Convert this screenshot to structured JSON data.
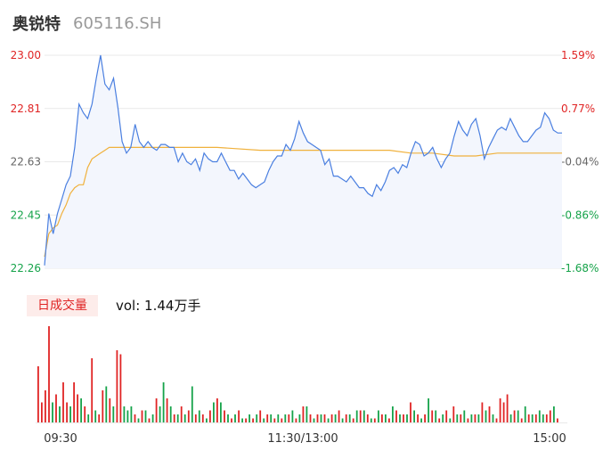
{
  "header": {
    "name": "奥锐特",
    "code": "605116.SH"
  },
  "colors": {
    "up": "#e02424",
    "down": "#16a34a",
    "neutral": "#666666",
    "price_line": "#4a7fe0",
    "avg_line": "#f0b13c",
    "area_fill": "#f3f6fd",
    "grid": "#e9e9e9"
  },
  "volume_panel": {
    "badge": "日成交量",
    "label": "vol: 1.44万手"
  },
  "chart_data": {
    "type": "line",
    "title": "",
    "price_axis": {
      "ticks": [
        "23.00",
        "22.81",
        "22.63",
        "22.45",
        "22.26"
      ],
      "ylim": [
        22.26,
        23.0
      ]
    },
    "pct_axis": {
      "ticks": [
        "1.59%",
        "0.77%",
        "-0.04%",
        "-0.86%",
        "-1.68%"
      ],
      "colors": [
        "up",
        "up",
        "neutral",
        "down",
        "down"
      ]
    },
    "left_tick_colors": [
      "up",
      "up",
      "neutral",
      "down",
      "down"
    ],
    "x_ticks": [
      "09:30",
      "11:30/13:00",
      "15:00"
    ],
    "series": [
      {
        "name": "price",
        "x": [
          0,
          2,
          4,
          6,
          8,
          10,
          12,
          14,
          16,
          18,
          20,
          22,
          24,
          26,
          28,
          30,
          32,
          34,
          36,
          38,
          40,
          42,
          44,
          46,
          48,
          50,
          52,
          54,
          56,
          58,
          60,
          62,
          64,
          66,
          68,
          70,
          72,
          74,
          76,
          78,
          80,
          82,
          84,
          86,
          88,
          90,
          92,
          94,
          96,
          98,
          100,
          102,
          104,
          106,
          108,
          110,
          112,
          114,
          116,
          118,
          120,
          122,
          124,
          126,
          128,
          130,
          132,
          134,
          136,
          138,
          140,
          142,
          144,
          146,
          148,
          150,
          152,
          154,
          156,
          158,
          160,
          162,
          164,
          166,
          168,
          170,
          172,
          174,
          176,
          178,
          180,
          182,
          184,
          186,
          188,
          190,
          192,
          194,
          196,
          198,
          200,
          202,
          204,
          206,
          208,
          210,
          212,
          214,
          216,
          218,
          220,
          222,
          224,
          226,
          228,
          230,
          232,
          234,
          236,
          238,
          240
        ],
        "values": [
          22.27,
          22.45,
          22.38,
          22.45,
          22.5,
          22.55,
          22.58,
          22.68,
          22.83,
          22.8,
          22.78,
          22.83,
          22.92,
          23.0,
          22.9,
          22.88,
          22.92,
          22.82,
          22.7,
          22.66,
          22.68,
          22.76,
          22.7,
          22.68,
          22.7,
          22.68,
          22.67,
          22.69,
          22.69,
          22.68,
          22.68,
          22.63,
          22.66,
          22.63,
          22.62,
          22.64,
          22.6,
          22.66,
          22.64,
          22.63,
          22.63,
          22.66,
          22.63,
          22.6,
          22.6,
          22.57,
          22.59,
          22.57,
          22.55,
          22.54,
          22.55,
          22.56,
          22.6,
          22.63,
          22.65,
          22.65,
          22.69,
          22.67,
          22.71,
          22.77,
          22.73,
          22.7,
          22.69,
          22.68,
          22.67,
          22.62,
          22.64,
          22.58,
          22.58,
          22.57,
          22.56,
          22.58,
          22.56,
          22.54,
          22.54,
          22.52,
          22.51,
          22.55,
          22.53,
          22.56,
          22.6,
          22.61,
          22.59,
          22.62,
          22.61,
          22.66,
          22.7,
          22.69,
          22.65,
          22.66,
          22.68,
          22.64,
          22.61,
          22.64,
          22.66,
          22.72,
          22.77,
          22.74,
          22.72,
          22.76,
          22.78,
          22.72,
          22.64,
          22.68,
          22.71,
          22.74,
          22.75,
          22.74,
          22.78,
          22.75,
          22.72,
          22.7,
          22.7,
          22.72,
          22.74,
          22.75,
          22.8,
          22.78,
          22.74,
          22.73,
          22.73
        ]
      },
      {
        "name": "average",
        "x": [
          0,
          2,
          4,
          6,
          8,
          10,
          12,
          14,
          16,
          18,
          20,
          22,
          24,
          26,
          28,
          30,
          40,
          50,
          60,
          70,
          80,
          100,
          120,
          140,
          160,
          170,
          180,
          190,
          200,
          210,
          220,
          230,
          240
        ],
        "values": [
          22.3,
          22.38,
          22.4,
          22.41,
          22.45,
          22.48,
          22.52,
          22.54,
          22.55,
          22.55,
          22.61,
          22.64,
          22.65,
          22.66,
          22.67,
          22.68,
          22.68,
          22.68,
          22.68,
          22.68,
          22.68,
          22.67,
          22.67,
          22.67,
          22.67,
          22.66,
          22.66,
          22.65,
          22.65,
          22.66,
          22.66,
          22.66,
          22.66
        ]
      }
    ],
    "volume": {
      "values": [
        14,
        5,
        8,
        24,
        5,
        7,
        4,
        10,
        5,
        4,
        10,
        7,
        6,
        4,
        2,
        16,
        3,
        2,
        8,
        9,
        6,
        4,
        18,
        17,
        4,
        3,
        4,
        2,
        1,
        3,
        3,
        1,
        2,
        6,
        4,
        10,
        6,
        4,
        2,
        2,
        4,
        2,
        3,
        9,
        2,
        3,
        2,
        1,
        3,
        5,
        6,
        5,
        3,
        2,
        1,
        2,
        3,
        1,
        1,
        2,
        1,
        2,
        3,
        1,
        2,
        2,
        1,
        2,
        1,
        2,
        2,
        3,
        1,
        2,
        4,
        4,
        2,
        1,
        2,
        2,
        2,
        1,
        2,
        2,
        3,
        1,
        2,
        2,
        1,
        3,
        3,
        3,
        2,
        1,
        1,
        3,
        2,
        2,
        1,
        4,
        3,
        2,
        2,
        2,
        5,
        3,
        2,
        1,
        2,
        6,
        3,
        3,
        1,
        2,
        3,
        1,
        4,
        2,
        2,
        3,
        1,
        2,
        2,
        2,
        5,
        3,
        4,
        2,
        1,
        6,
        5,
        7,
        2,
        3,
        3,
        1,
        4,
        2,
        2,
        2,
        3,
        2,
        2,
        3,
        4,
        1
      ],
      "directions": [
        "up",
        "up",
        "up",
        "up",
        "down",
        "up",
        "down",
        "up",
        "up",
        "down",
        "up",
        "up",
        "down",
        "up",
        "down",
        "up",
        "down",
        "up",
        "up",
        "down",
        "up",
        "down",
        "up",
        "up",
        "down",
        "down",
        "down",
        "up",
        "down",
        "up",
        "down",
        "up",
        "down",
        "up",
        "down",
        "down",
        "up",
        "down",
        "up",
        "down",
        "up",
        "down",
        "up",
        "down",
        "up",
        "down",
        "up",
        "down",
        "up",
        "down",
        "up",
        "down",
        "up",
        "down",
        "up",
        "down",
        "up",
        "down",
        "up",
        "down",
        "up",
        "down",
        "up",
        "down",
        "up",
        "down",
        "up",
        "down",
        "up",
        "down",
        "up",
        "down",
        "up",
        "down",
        "up",
        "down",
        "up",
        "down",
        "up",
        "down",
        "up",
        "down",
        "up",
        "down",
        "up",
        "down",
        "up",
        "down",
        "up",
        "down",
        "up",
        "down",
        "up",
        "down",
        "up",
        "down",
        "up",
        "down",
        "up",
        "down",
        "up",
        "down",
        "up",
        "down",
        "up",
        "down",
        "up",
        "down",
        "up",
        "down",
        "up",
        "down",
        "up",
        "down",
        "up",
        "down",
        "up",
        "down",
        "up",
        "down",
        "up",
        "down",
        "up",
        "down",
        "up",
        "down",
        "up",
        "down",
        "up",
        "up",
        "up",
        "up",
        "down",
        "up",
        "down",
        "up",
        "down",
        "up",
        "down",
        "up",
        "down",
        "down",
        "up",
        "up",
        "down",
        "up"
      ],
      "max": 24
    }
  }
}
